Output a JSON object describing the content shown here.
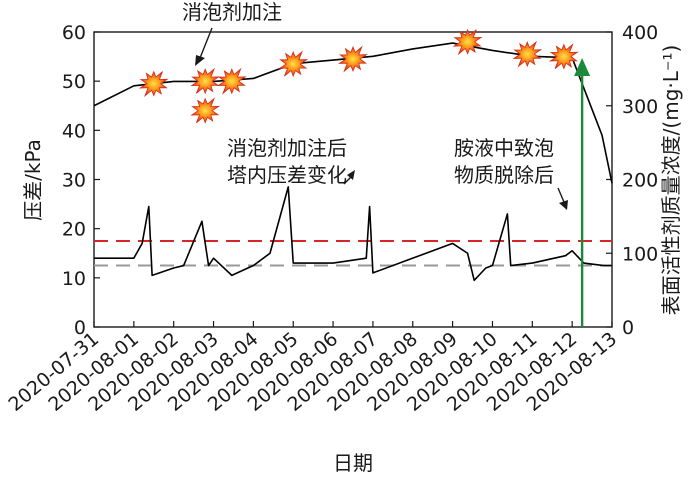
{
  "chart_data": {
    "type": "line",
    "categories": [
      "2020-07-31",
      "2020-08-01",
      "2020-08-02",
      "2020-08-03",
      "2020-08-04",
      "2020-08-05",
      "2020-08-06",
      "2020-08-07",
      "2020-08-08",
      "2020-08-09",
      "2020-08-10",
      "2020-08-11",
      "2020-08-12",
      "2020-08-13"
    ],
    "xlabel": "日期",
    "ylabel": "压差/kPa",
    "ylim": [
      0,
      60
    ],
    "yticks": [
      0,
      10,
      20,
      30,
      40,
      50,
      60
    ],
    "y2label": "表面活性剂质量浓度/(mg·L⁻¹)",
    "y2lim": [
      0,
      400
    ],
    "y2ticks": [
      0,
      100,
      200,
      300,
      400
    ],
    "series": [
      {
        "axis": "left",
        "color": "#000000",
        "x": [
          "2020-07-31",
          "2020-08-01",
          "2020-08-01 05:00",
          "2020-08-01 09:00",
          "2020-08-01 11:00",
          "2020-08-02 00:00",
          "2020-08-02 06:00",
          "2020-08-02 17:00",
          "2020-08-02 21:00",
          "2020-08-03 00:00",
          "2020-08-03 11:00",
          "2020-08-04 00:00",
          "2020-08-04 10:00",
          "2020-08-04 21:00",
          "2020-08-05 00:00",
          "2020-08-06 00:00",
          "2020-08-06 20:00",
          "2020-08-06 22:00",
          "2020-08-07 00:00",
          "2020-08-08 00:00",
          "2020-08-09 00:00",
          "2020-08-09 09:00",
          "2020-08-09 13:00",
          "2020-08-09 20:00",
          "2020-08-10 00:00",
          "2020-08-10 09:00",
          "2020-08-10 11:00",
          "2020-08-11 00:00",
          "2020-08-11 20:00",
          "2020-08-12 00:00",
          "2020-08-12 07:00",
          "2020-08-12 19:00",
          "2020-08-13"
        ],
        "values": [
          14,
          14,
          17,
          24.5,
          10.5,
          12,
          12.5,
          21.5,
          12.5,
          14,
          10.5,
          12.5,
          15,
          28.5,
          13,
          13,
          14,
          24.5,
          11,
          14,
          17,
          15,
          9.5,
          12,
          12.5,
          23,
          12.5,
          13,
          14.5,
          15.5,
          13,
          12.5,
          12.5
        ]
      },
      {
        "axis": "right",
        "color": "#000000",
        "x": [
          "2020-07-31",
          "2020-08-01",
          "2020-08-02",
          "2020-08-03",
          "2020-08-04",
          "2020-08-05",
          "2020-08-06",
          "2020-08-07",
          "2020-08-08",
          "2020-08-09",
          "2020-08-10",
          "2020-08-11",
          "2020-08-12",
          "2020-08-12 18:00",
          "2020-08-13"
        ],
        "values": [
          300,
          327,
          333,
          333,
          337,
          357,
          362,
          367,
          377,
          385,
          375,
          367,
          365,
          260,
          195
        ]
      }
    ],
    "reference_lines": [
      {
        "axis": "left",
        "value": 17.5,
        "color": "#d62728",
        "style": "dashed"
      },
      {
        "axis": "left",
        "value": 12.5,
        "color": "#999999",
        "style": "dashed"
      }
    ],
    "markers": {
      "name": "消泡剂加注",
      "points": [
        {
          "x": "2020-08-01 12:00",
          "y": 49.5
        },
        {
          "x": "2020-08-02 19:00",
          "y": 50
        },
        {
          "x": "2020-08-02 19:00",
          "y": 44
        },
        {
          "x": "2020-08-03 11:00",
          "y": 50
        },
        {
          "x": "2020-08-05 00:00",
          "y": 53.5
        },
        {
          "x": "2020-08-06 12:00",
          "y": 54.5
        },
        {
          "x": "2020-08-09 09:00",
          "y": 58
        },
        {
          "x": "2020-08-10 21:00",
          "y": 55.5
        },
        {
          "x": "2020-08-11 19:00",
          "y": 55
        }
      ]
    },
    "vertical_arrow": {
      "x": "2020-08-12 06:00",
      "color": "#1a8a3a"
    },
    "annotations": [
      {
        "text": "消泡剂加注"
      },
      {
        "text": "消泡剂加注后"
      },
      {
        "text": "塔内压差变化"
      },
      {
        "text": "胺液中致泡"
      },
      {
        "text": "物质脱除后"
      }
    ],
    "grid": false,
    "legend": "none"
  }
}
